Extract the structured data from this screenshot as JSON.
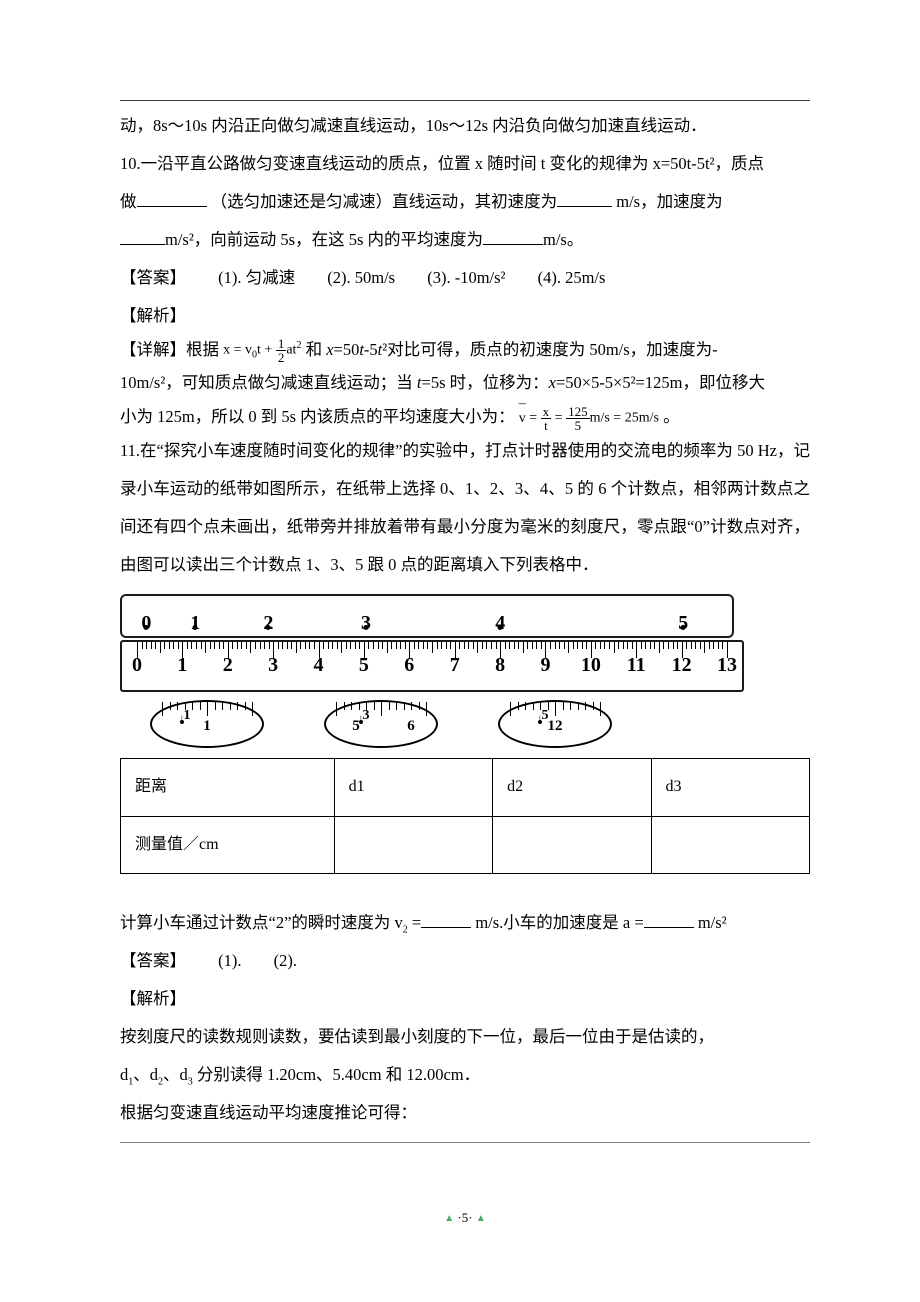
{
  "colors": {
    "text": "#000000",
    "bg": "#ffffff",
    "rule": "#393939"
  },
  "typography": {
    "body_fontsize_pt": 12,
    "line_height": 2.3
  },
  "line_prev": "动，8s～10s 内沿正向做匀减速直线运动，10s～12s 内沿负向做匀加速直线运动．",
  "q10": {
    "stem1": "10.一沿平直公路做匀变速直线运动的质点，位置 x 随时间 t 变化的规律为 x=50t-5t²，质点",
    "hint1": "做",
    "hint1b": "（选匀加速还是匀减速）直线运动，其初速度为",
    "unit1": " m/s，加速度为",
    "stem2_a": "m/s²，向前运动 5s，在这 5s 内的平均速度为",
    "stem2_b": "m/s。",
    "ans_label": "【答案】",
    "ans": [
      "(1). 匀减速",
      "(2). 50m/s",
      "(3). -10m/s²",
      "(4). 25m/s"
    ],
    "jiexi": "【解析】",
    "detail_a": "【详解】根据",
    "formula1_lhs": "x = v",
    "formula1_sub0": "0",
    "formula1_mid": "t +",
    "formula1_fr_num": "1",
    "formula1_fr_den": "2",
    "formula1_tail": "at",
    "formula1_sup2": "2",
    "detail_b_1": "和 ",
    "detail_b_xeq": "x",
    "detail_b_2": "=50",
    "detail_b_t1": "t",
    "detail_b_3": "-5",
    "detail_b_t2": "t",
    "detail_b_4": "²对比可得，质点的初速度为 50m/s，加速度为-",
    "detail_c_1": "10m/s²，可知质点做匀减速直线运动；当 ",
    "detail_c_t": "t",
    "detail_c_2": "=5s 时，位移为：",
    "detail_c_x": "x",
    "detail_c_3": "=50×5-5×5²=125m，即位移大",
    "detail_d_a": "小为 125m，所以 0 到 5s 内该质点的平均速度大小为：",
    "vbar": "v̄",
    "eq": " = ",
    "fr2a_num": "x",
    "fr2a_den": "t",
    "fr2b_num": "125",
    "fr2b_den": "5",
    "tail2": "m/s = 25m/s",
    "period": "。"
  },
  "q11": {
    "stem": "11.在“探究小车速度随时间变化的规律”的实验中，打点计时器使用的交流电的频率为 50 Hz，记录小车运动的纸带如图所示，在纸带上选择 0、1、2、3、4、5 的 6 个计数点，相邻两计数点之间还有四个点未画出，纸带旁并排放着带有最小分度为毫米的刻度尺，零点跟“0”计数点对齐，由图可以读出三个计数点 1、3、5 跟 0 点的距离填入下列表格中．",
    "tape_labels": [
      "0",
      "1",
      "2",
      "3",
      "4",
      "5"
    ],
    "tape_positions_pct": [
      4,
      12,
      24,
      40,
      62,
      92
    ],
    "ruler_min": 0,
    "ruler_max": 13,
    "zoom": [
      {
        "pointer_label": "1",
        "ticks": [
          "1"
        ],
        "arrow_pct": 30
      },
      {
        "pointer_label": "3",
        "ticks": [
          "5",
          "6"
        ],
        "arrow_pct": 35
      },
      {
        "pointer_label": "5",
        "ticks": [
          "12"
        ],
        "arrow_pct": 40
      }
    ],
    "table": {
      "r1c1": "距离",
      "d1": "d1",
      "d2": "d2",
      "d3": "d3",
      "r2c1": "测量值／cm"
    },
    "calc_a": "计算小车通过计数点“2”的瞬时速度为 v",
    "calc_a2": " =",
    "calc_mid": " m/s.小车的加速度是 a =",
    "calc_b": " m/s²",
    "ans_label": "【答案】",
    "ans": [
      "(1).",
      "(2)."
    ],
    "jiexi": "【解析】",
    "line1": "按刻度尺的读数规则读数，要估读到最小刻度的下一位，最后一位由于是估读的，",
    "line2_a": "d",
    "line2_1": "1",
    "line2_b": "、d",
    "line2_2": "2",
    "line2_c": "、d",
    "line2_3": "3",
    "line2_d": " 分别读得 1.20cm、5.40cm 和 12.00cm．",
    "line3": "根据匀变速直线运动平均速度推论可得："
  },
  "footer": {
    "page": "·5·"
  }
}
